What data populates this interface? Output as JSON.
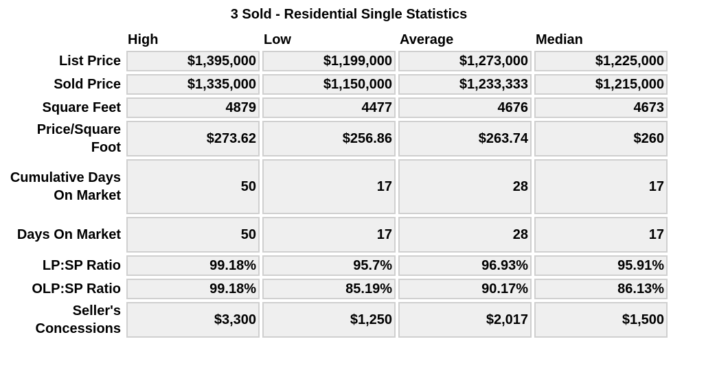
{
  "title": "3 Sold - Residential Single Statistics",
  "columns": [
    "High",
    "Low",
    "Average",
    "Median"
  ],
  "rows": [
    {
      "label": "List Price",
      "values": [
        "$1,395,000",
        "$1,199,000",
        "$1,273,000",
        "$1,225,000"
      ]
    },
    {
      "label": "Sold Price",
      "values": [
        "$1,335,000",
        "$1,150,000",
        "$1,233,333",
        "$1,215,000"
      ]
    },
    {
      "label": "Square Feet",
      "values": [
        "4879",
        "4477",
        "4676",
        "4673"
      ]
    },
    {
      "label": "Price/Square Foot",
      "values": [
        "$273.62",
        "$256.86",
        "$263.74",
        "$260"
      ]
    },
    {
      "label": "Cumulative Days On Market",
      "values": [
        "50",
        "17",
        "28",
        "17"
      ]
    },
    {
      "label": "Days On Market",
      "values": [
        "50",
        "17",
        "28",
        "17"
      ]
    },
    {
      "label": "LP:SP Ratio",
      "values": [
        "99.18%",
        "95.7%",
        "96.93%",
        "95.91%"
      ]
    },
    {
      "label": "OLP:SP Ratio",
      "values": [
        "99.18%",
        "85.19%",
        "90.17%",
        "86.13%"
      ]
    },
    {
      "label": "Seller's Concessions",
      "values": [
        "$3,300",
        "$1,250",
        "$2,017",
        "$1,500"
      ]
    }
  ]
}
